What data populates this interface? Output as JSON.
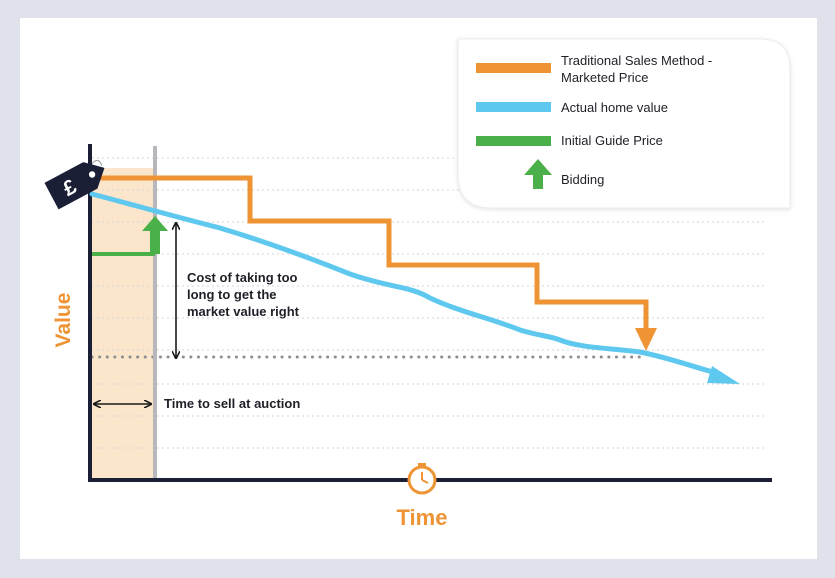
{
  "colors": {
    "traditional": "#ef9434",
    "actual": "#5ec8ee",
    "guide": "#4cb04a",
    "axis": "#1a1f36",
    "auction_shade": "#fbe6cc",
    "axis_label": "#ef9434",
    "text": "#1f1f28"
  },
  "legend": {
    "items": [
      {
        "label_lines": [
          "Traditional Sales Method -",
          "Marketed Price"
        ],
        "icon": "orange-line"
      },
      {
        "label_lines": [
          "Actual home value"
        ],
        "icon": "blue-line"
      },
      {
        "label_lines": [
          "Initial Guide Price"
        ],
        "icon": "green-line"
      },
      {
        "label_lines": [
          "Bidding"
        ],
        "icon": "green-up-arrow"
      }
    ]
  },
  "annotations": {
    "cost_lines": [
      "Cost of taking too",
      "long to get the",
      "market value right"
    ],
    "auction_label": "Time to sell at auction"
  },
  "axes": {
    "y_label": "Value",
    "x_label": "Time"
  },
  "price_tag": {
    "symbol": "£",
    "icon": "price-tag-icon"
  },
  "time_icon": "clock-icon"
}
